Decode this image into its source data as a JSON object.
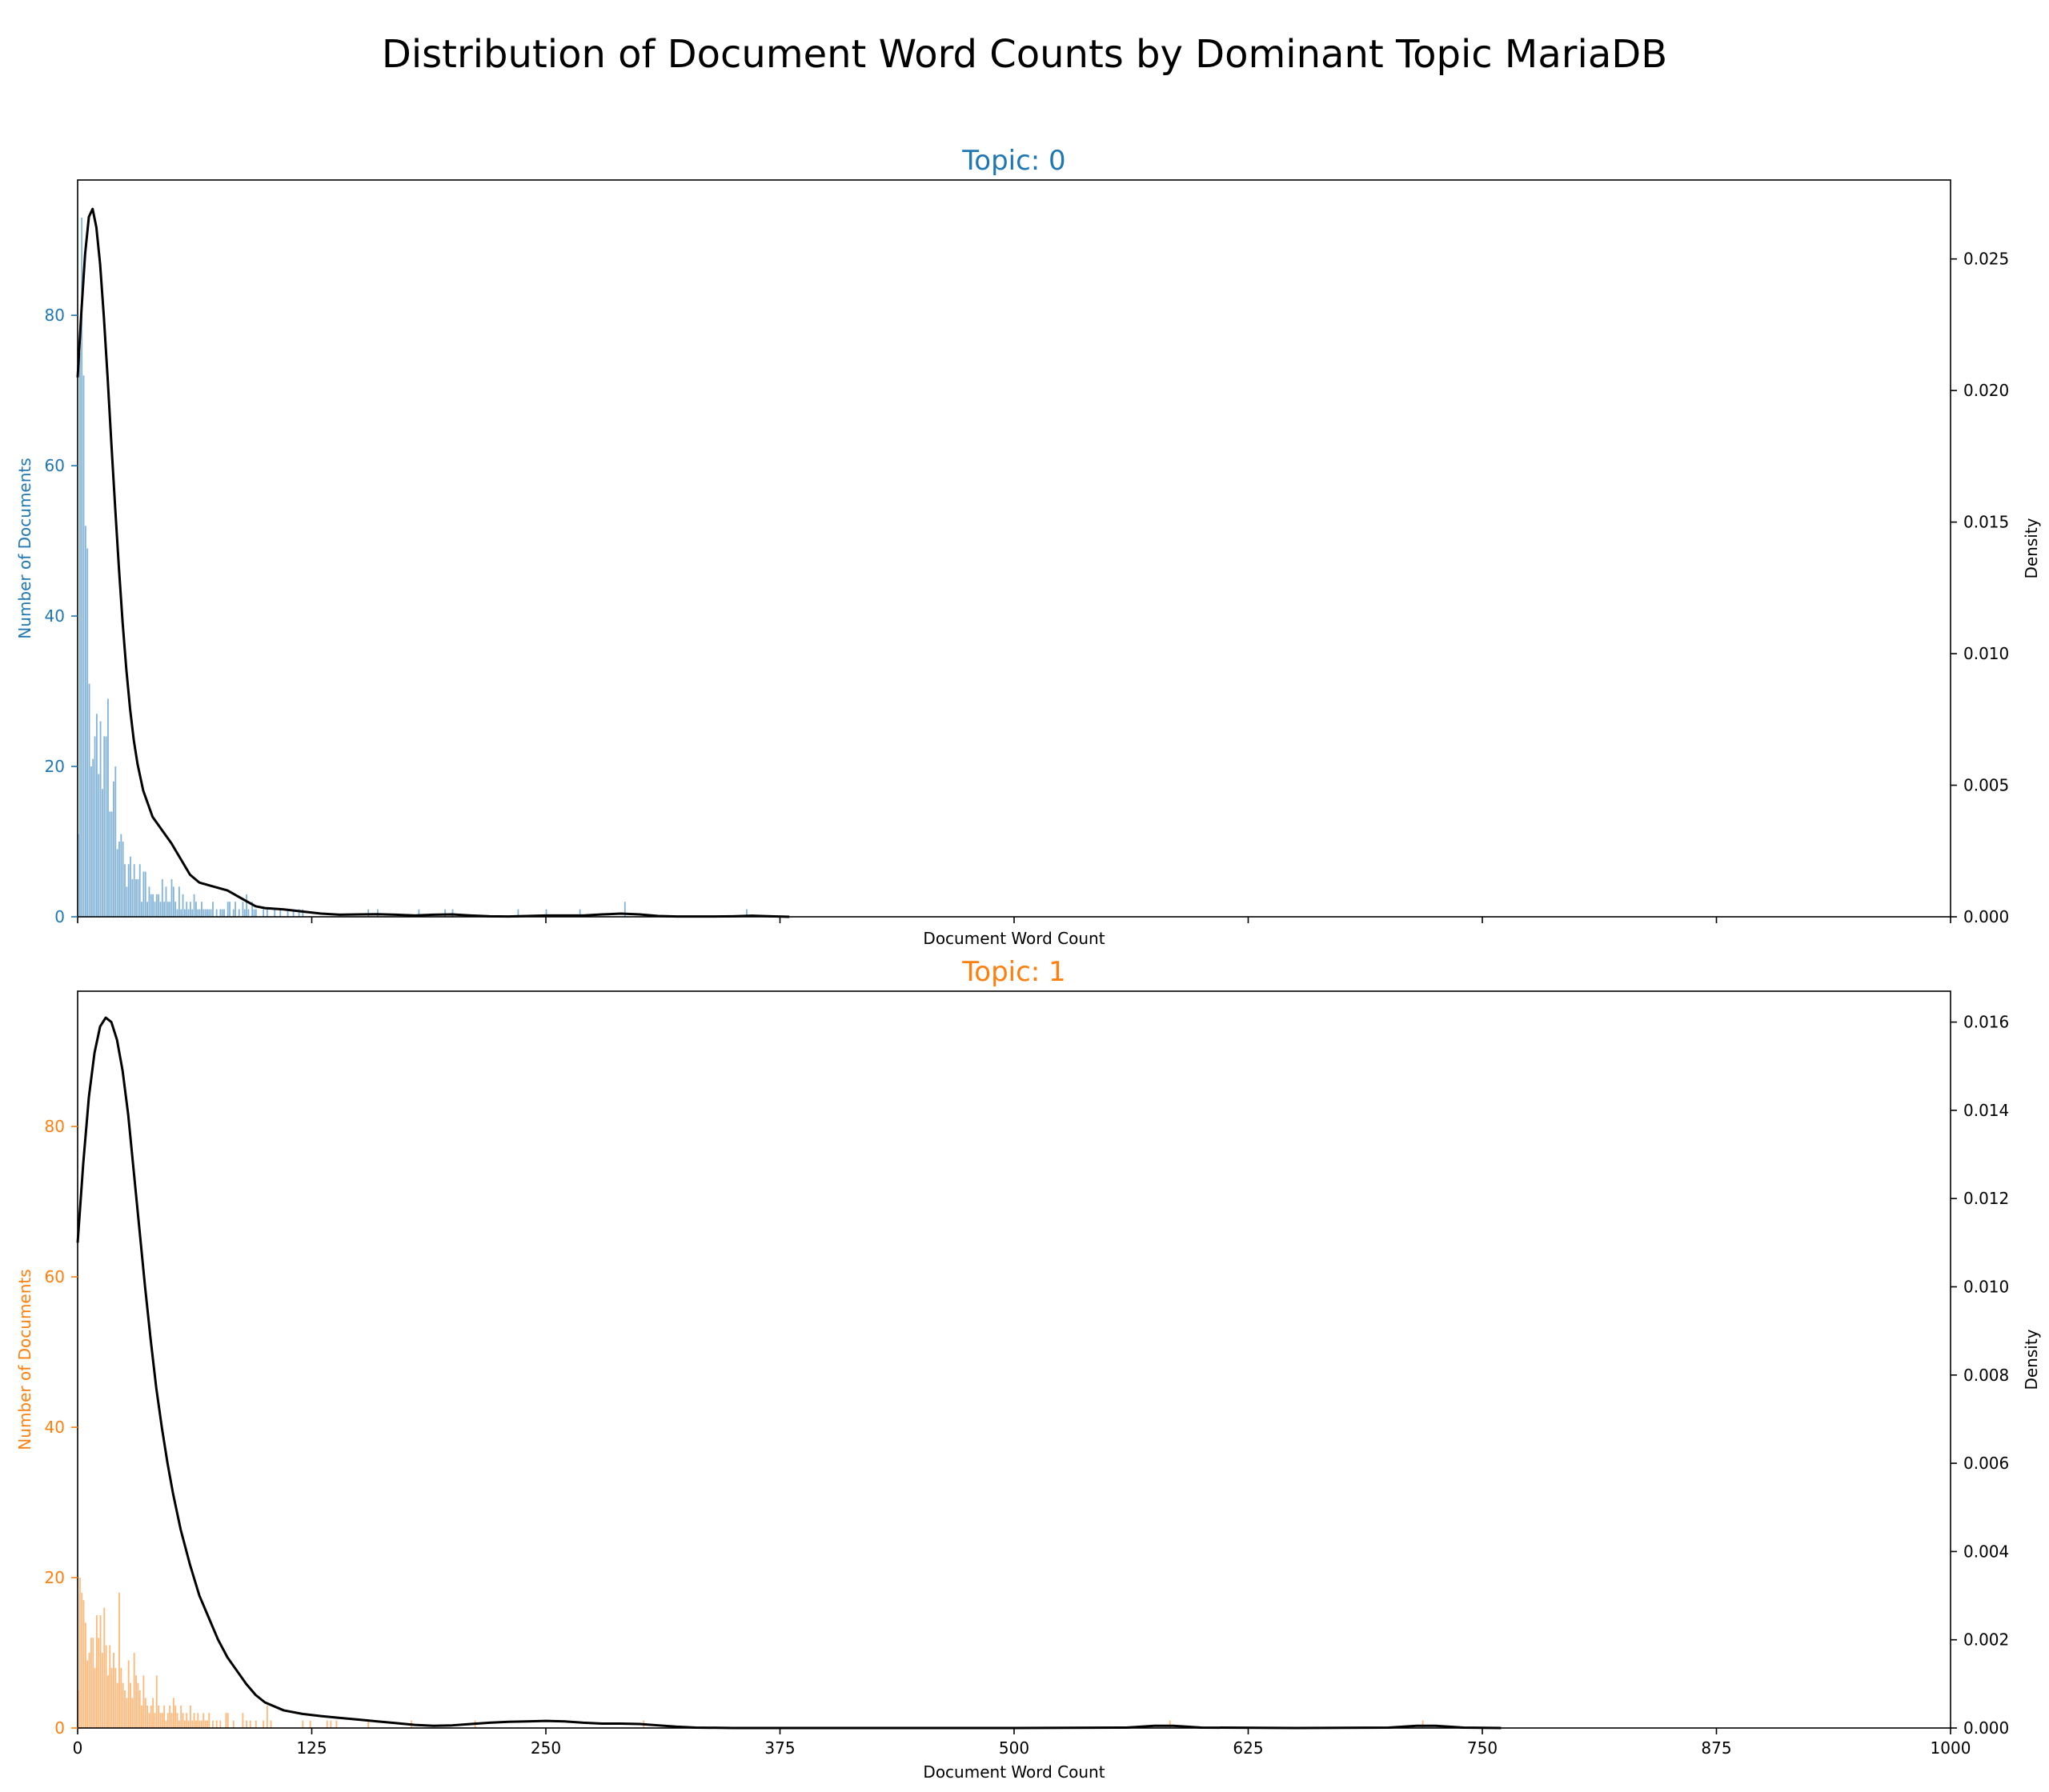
{
  "title": "Distribution of Document Word Counts by Dominant Topic MariaDB",
  "chart_data": [
    {
      "type": "histogram",
      "title": "Topic: 0",
      "color": "#1f77b4",
      "xlabel": "Document Word Count",
      "ylabel": "Number of Documents",
      "y2label": "Density",
      "xlim": [
        0,
        1000
      ],
      "xticks": [
        0,
        125,
        250,
        375,
        500,
        625,
        750,
        875,
        1000
      ],
      "show_xtick_labels": false,
      "ylim": [
        0,
        98
      ],
      "yticks": [
        0,
        20,
        40,
        60,
        80
      ],
      "y2lim": [
        0,
        0.028
      ],
      "y2ticks": [
        "0.000",
        "0.005",
        "0.010",
        "0.015",
        "0.020",
        "0.025"
      ],
      "bars": [
        [
          0,
          11
        ],
        [
          1,
          75
        ],
        [
          2,
          93
        ],
        [
          3,
          72
        ],
        [
          4,
          52
        ],
        [
          5,
          49
        ],
        [
          6,
          31
        ],
        [
          7,
          20
        ],
        [
          8,
          21
        ],
        [
          9,
          24
        ],
        [
          10,
          27
        ],
        [
          11,
          19
        ],
        [
          12,
          26
        ],
        [
          13,
          17
        ],
        [
          14,
          24
        ],
        [
          15,
          24
        ],
        [
          16,
          29
        ],
        [
          17,
          14
        ],
        [
          18,
          14
        ],
        [
          19,
          18
        ],
        [
          20,
          20
        ],
        [
          21,
          9
        ],
        [
          22,
          10
        ],
        [
          23,
          11
        ],
        [
          24,
          10
        ],
        [
          25,
          7
        ],
        [
          26,
          4
        ],
        [
          27,
          7
        ],
        [
          28,
          8
        ],
        [
          29,
          5
        ],
        [
          30,
          7
        ],
        [
          31,
          5
        ],
        [
          32,
          5
        ],
        [
          33,
          7
        ],
        [
          34,
          2
        ],
        [
          35,
          6
        ],
        [
          36,
          6
        ],
        [
          37,
          2
        ],
        [
          38,
          4
        ],
        [
          39,
          3
        ],
        [
          40,
          3
        ],
        [
          41,
          2
        ],
        [
          42,
          3
        ],
        [
          43,
          3
        ],
        [
          44,
          2
        ],
        [
          45,
          5
        ],
        [
          46,
          2
        ],
        [
          47,
          4
        ],
        [
          48,
          2
        ],
        [
          49,
          2
        ],
        [
          50,
          5
        ],
        [
          51,
          4
        ],
        [
          52,
          2
        ],
        [
          53,
          1
        ],
        [
          54,
          4
        ],
        [
          55,
          1
        ],
        [
          56,
          3
        ],
        [
          57,
          1
        ],
        [
          58,
          2
        ],
        [
          59,
          1
        ],
        [
          60,
          2
        ],
        [
          61,
          1
        ],
        [
          62,
          3
        ],
        [
          63,
          2
        ],
        [
          64,
          1
        ],
        [
          65,
          1
        ],
        [
          66,
          2
        ],
        [
          67,
          1
        ],
        [
          68,
          1
        ],
        [
          69,
          1
        ],
        [
          70,
          1
        ],
        [
          71,
          1
        ],
        [
          72,
          2
        ],
        [
          74,
          1
        ],
        [
          76,
          1
        ],
        [
          77,
          1
        ],
        [
          78,
          1
        ],
        [
          80,
          2
        ],
        [
          81,
          2
        ],
        [
          83,
          1
        ],
        [
          84,
          2
        ],
        [
          86,
          1
        ],
        [
          88,
          2
        ],
        [
          89,
          1
        ],
        [
          90,
          3
        ],
        [
          91,
          1
        ],
        [
          93,
          2
        ],
        [
          94,
          1
        ],
        [
          95,
          1
        ],
        [
          99,
          1
        ],
        [
          101,
          1
        ],
        [
          105,
          1
        ],
        [
          108,
          1
        ],
        [
          112,
          1
        ],
        [
          115,
          1
        ],
        [
          118,
          1
        ],
        [
          120,
          1
        ],
        [
          155,
          1
        ],
        [
          160,
          1
        ],
        [
          182,
          1
        ],
        [
          196,
          1
        ],
        [
          200,
          1
        ],
        [
          235,
          1
        ],
        [
          250,
          1
        ],
        [
          268,
          1
        ],
        [
          292,
          2
        ],
        [
          357,
          1
        ]
      ],
      "density": [
        [
          0,
          0.0205
        ],
        [
          2,
          0.023
        ],
        [
          4,
          0.0252
        ],
        [
          6,
          0.0266
        ],
        [
          8,
          0.0269
        ],
        [
          10,
          0.0262
        ],
        [
          12,
          0.0248
        ],
        [
          14,
          0.0228
        ],
        [
          16,
          0.0205
        ],
        [
          18,
          0.018
        ],
        [
          20,
          0.0156
        ],
        [
          22,
          0.0133
        ],
        [
          24,
          0.0112
        ],
        [
          26,
          0.0094
        ],
        [
          28,
          0.0079
        ],
        [
          30,
          0.0067
        ],
        [
          32,
          0.0058
        ],
        [
          35,
          0.0048
        ],
        [
          40,
          0.0038
        ],
        [
          45,
          0.0033
        ],
        [
          50,
          0.0028
        ],
        [
          55,
          0.0022
        ],
        [
          60,
          0.0016
        ],
        [
          65,
          0.0013
        ],
        [
          70,
          0.0012
        ],
        [
          75,
          0.0011
        ],
        [
          80,
          0.001
        ],
        [
          85,
          0.0008
        ],
        [
          90,
          0.0006
        ],
        [
          95,
          0.0004
        ],
        [
          100,
          0.00033
        ],
        [
          110,
          0.00028
        ],
        [
          120,
          0.0002
        ],
        [
          130,
          0.00012
        ],
        [
          140,
          8e-05
        ],
        [
          150,
          9e-05
        ],
        [
          160,
          0.0001
        ],
        [
          170,
          8e-05
        ],
        [
          180,
          5e-05
        ],
        [
          190,
          8e-05
        ],
        [
          200,
          9e-05
        ],
        [
          210,
          5e-05
        ],
        [
          220,
          2e-05
        ],
        [
          230,
          1e-05
        ],
        [
          240,
          3e-05
        ],
        [
          250,
          5e-05
        ],
        [
          260,
          5e-05
        ],
        [
          270,
          5e-05
        ],
        [
          280,
          9e-05
        ],
        [
          290,
          0.00012
        ],
        [
          300,
          9e-05
        ],
        [
          310,
          3e-05
        ],
        [
          320,
          1e-05
        ],
        [
          340,
          1e-05
        ],
        [
          350,
          2e-05
        ],
        [
          360,
          4e-05
        ],
        [
          370,
          2e-05
        ],
        [
          380,
          0.0
        ]
      ]
    },
    {
      "type": "histogram",
      "title": "Topic: 1",
      "color": "#ff7f0e",
      "xlabel": "Document Word Count",
      "ylabel": "Number of Documents",
      "y2label": "Density",
      "xlim": [
        0,
        1000
      ],
      "xticks": [
        0,
        125,
        250,
        375,
        500,
        625,
        750,
        875,
        1000
      ],
      "show_xtick_labels": true,
      "ylim": [
        0,
        98
      ],
      "yticks": [
        0,
        20,
        40,
        60,
        80
      ],
      "y2lim": [
        0,
        0.0167
      ],
      "y2ticks": [
        "0.000",
        "0.002",
        "0.004",
        "0.006",
        "0.008",
        "0.010",
        "0.012",
        "0.014",
        "0.016"
      ],
      "bars": [
        [
          0,
          5
        ],
        [
          1,
          20
        ],
        [
          2,
          18
        ],
        [
          3,
          17
        ],
        [
          4,
          14
        ],
        [
          5,
          9
        ],
        [
          6,
          10
        ],
        [
          7,
          12
        ],
        [
          8,
          12
        ],
        [
          9,
          8
        ],
        [
          10,
          15
        ],
        [
          11,
          12
        ],
        [
          12,
          15
        ],
        [
          13,
          10
        ],
        [
          14,
          16
        ],
        [
          15,
          11
        ],
        [
          16,
          7
        ],
        [
          17,
          11
        ],
        [
          18,
          8
        ],
        [
          19,
          10
        ],
        [
          20,
          8
        ],
        [
          21,
          6
        ],
        [
          22,
          18
        ],
        [
          23,
          8
        ],
        [
          24,
          6
        ],
        [
          25,
          5
        ],
        [
          26,
          4
        ],
        [
          27,
          9
        ],
        [
          28,
          6
        ],
        [
          29,
          4
        ],
        [
          30,
          10
        ],
        [
          31,
          7
        ],
        [
          32,
          6
        ],
        [
          33,
          5
        ],
        [
          34,
          3
        ],
        [
          35,
          7
        ],
        [
          36,
          4
        ],
        [
          37,
          3
        ],
        [
          38,
          2
        ],
        [
          39,
          3
        ],
        [
          40,
          4
        ],
        [
          41,
          2
        ],
        [
          42,
          7
        ],
        [
          43,
          3
        ],
        [
          44,
          2
        ],
        [
          45,
          2
        ],
        [
          46,
          3
        ],
        [
          47,
          1
        ],
        [
          48,
          2
        ],
        [
          49,
          3
        ],
        [
          50,
          2
        ],
        [
          51,
          4
        ],
        [
          52,
          3
        ],
        [
          53,
          2
        ],
        [
          54,
          1
        ],
        [
          55,
          3
        ],
        [
          56,
          2
        ],
        [
          57,
          1
        ],
        [
          58,
          2
        ],
        [
          59,
          1
        ],
        [
          60,
          3
        ],
        [
          61,
          1
        ],
        [
          62,
          2
        ],
        [
          63,
          1
        ],
        [
          64,
          2
        ],
        [
          65,
          1
        ],
        [
          66,
          1
        ],
        [
          67,
          2
        ],
        [
          68,
          1
        ],
        [
          69,
          1
        ],
        [
          70,
          2
        ],
        [
          72,
          1
        ],
        [
          74,
          1
        ],
        [
          76,
          1
        ],
        [
          79,
          2
        ],
        [
          80,
          2
        ],
        [
          83,
          1
        ],
        [
          88,
          2
        ],
        [
          90,
          1
        ],
        [
          92,
          1
        ],
        [
          95,
          1
        ],
        [
          99,
          1
        ],
        [
          101,
          3
        ],
        [
          103,
          1
        ],
        [
          120,
          1
        ],
        [
          124,
          1
        ],
        [
          133,
          1
        ],
        [
          135,
          1
        ],
        [
          138,
          1
        ],
        [
          155,
          1
        ],
        [
          178,
          1
        ],
        [
          212,
          1
        ],
        [
          302,
          1
        ],
        [
          583,
          1
        ],
        [
          718,
          1
        ]
      ],
      "density": [
        [
          0,
          0.011
        ],
        [
          3,
          0.0128
        ],
        [
          6,
          0.0143
        ],
        [
          9,
          0.0153
        ],
        [
          12,
          0.0159
        ],
        [
          15,
          0.0161
        ],
        [
          18,
          0.016
        ],
        [
          21,
          0.0156
        ],
        [
          24,
          0.0149
        ],
        [
          27,
          0.0139
        ],
        [
          30,
          0.0126
        ],
        [
          33,
          0.0113
        ],
        [
          36,
          0.01
        ],
        [
          39,
          0.0088
        ],
        [
          42,
          0.0077
        ],
        [
          45,
          0.0068
        ],
        [
          48,
          0.006
        ],
        [
          51,
          0.0053
        ],
        [
          55,
          0.0045
        ],
        [
          60,
          0.0037
        ],
        [
          65,
          0.003
        ],
        [
          70,
          0.0025
        ],
        [
          75,
          0.002
        ],
        [
          80,
          0.0016
        ],
        [
          85,
          0.0013
        ],
        [
          90,
          0.001
        ],
        [
          95,
          0.00075
        ],
        [
          100,
          0.00058
        ],
        [
          110,
          0.0004
        ],
        [
          120,
          0.00032
        ],
        [
          130,
          0.00027
        ],
        [
          140,
          0.00023
        ],
        [
          150,
          0.00019
        ],
        [
          160,
          0.00015
        ],
        [
          170,
          0.00011
        ],
        [
          180,
          7e-05
        ],
        [
          190,
          5e-05
        ],
        [
          200,
          6e-05
        ],
        [
          210,
          9e-05
        ],
        [
          220,
          0.00012
        ],
        [
          230,
          0.00014
        ],
        [
          240,
          0.00015
        ],
        [
          250,
          0.00016
        ],
        [
          260,
          0.00015
        ],
        [
          270,
          0.00012
        ],
        [
          280,
          0.0001
        ],
        [
          290,
          0.0001
        ],
        [
          300,
          9e-05
        ],
        [
          310,
          6e-05
        ],
        [
          320,
          3e-05
        ],
        [
          330,
          1e-05
        ],
        [
          350,
          0.0
        ],
        [
          400,
          0.0
        ],
        [
          500,
          0.0
        ],
        [
          560,
          1e-05
        ],
        [
          575,
          5e-05
        ],
        [
          585,
          5e-05
        ],
        [
          600,
          1e-05
        ],
        [
          650,
          0.0
        ],
        [
          700,
          1e-05
        ],
        [
          715,
          5e-05
        ],
        [
          725,
          5e-05
        ],
        [
          740,
          1e-05
        ],
        [
          760,
          0.0
        ]
      ]
    }
  ]
}
